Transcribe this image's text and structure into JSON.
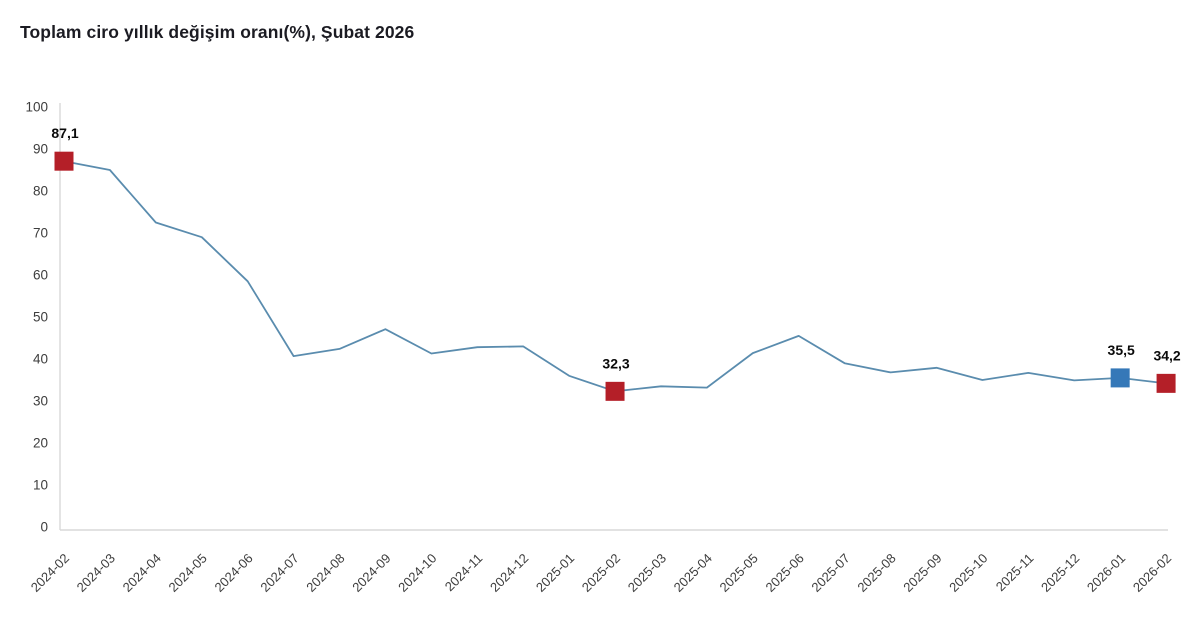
{
  "title": "Toplam ciro yıllık değişim oranı(%), Şubat 2026",
  "colors": {
    "line": "#5a8cae",
    "marker_red": "#b41f28",
    "marker_blue": "#3578b8",
    "axis_line": "#d8d8d8",
    "tick_label": "#3d3d3d",
    "title_text": "#1b1b22",
    "data_label": "#0a0a0a",
    "background": "#ffffff"
  },
  "chart_data": {
    "type": "line",
    "title": "Toplam ciro yıllık değişim oranı(%), Şubat 2026",
    "xlabel": "",
    "ylabel": "",
    "ylim": [
      0,
      100
    ],
    "yticks": [
      0,
      10,
      20,
      30,
      40,
      50,
      60,
      70,
      80,
      90,
      100
    ],
    "grid": false,
    "legend": "none",
    "categories": [
      "2024-02",
      "2024-03",
      "2024-04",
      "2024-05",
      "2024-06",
      "2024-07",
      "2024-08",
      "2024-09",
      "2024-10",
      "2024-11",
      "2024-12",
      "2025-01",
      "2025-02",
      "2025-03",
      "2025-04",
      "2025-05",
      "2025-06",
      "2025-07",
      "2025-08",
      "2025-09",
      "2025-10",
      "2025-11",
      "2025-12",
      "2026-01",
      "2026-02"
    ],
    "values": [
      87.1,
      85.0,
      72.5,
      69.0,
      58.5,
      40.7,
      42.4,
      47.1,
      41.3,
      42.8,
      43.0,
      36.0,
      32.3,
      33.5,
      33.2,
      41.4,
      45.5,
      39.0,
      36.8,
      37.9,
      35.0,
      36.7,
      34.9,
      35.5,
      34.2
    ],
    "highlighted_points": [
      {
        "category": "2024-02",
        "value": 87.1,
        "label": "87,1",
        "marker": "red"
      },
      {
        "category": "2025-02",
        "value": 32.3,
        "label": "32,3",
        "marker": "red"
      },
      {
        "category": "2026-01",
        "value": 35.5,
        "label": "35,5",
        "marker": "blue"
      },
      {
        "category": "2026-02",
        "value": 34.2,
        "label": "34,2",
        "marker": "red"
      }
    ]
  }
}
